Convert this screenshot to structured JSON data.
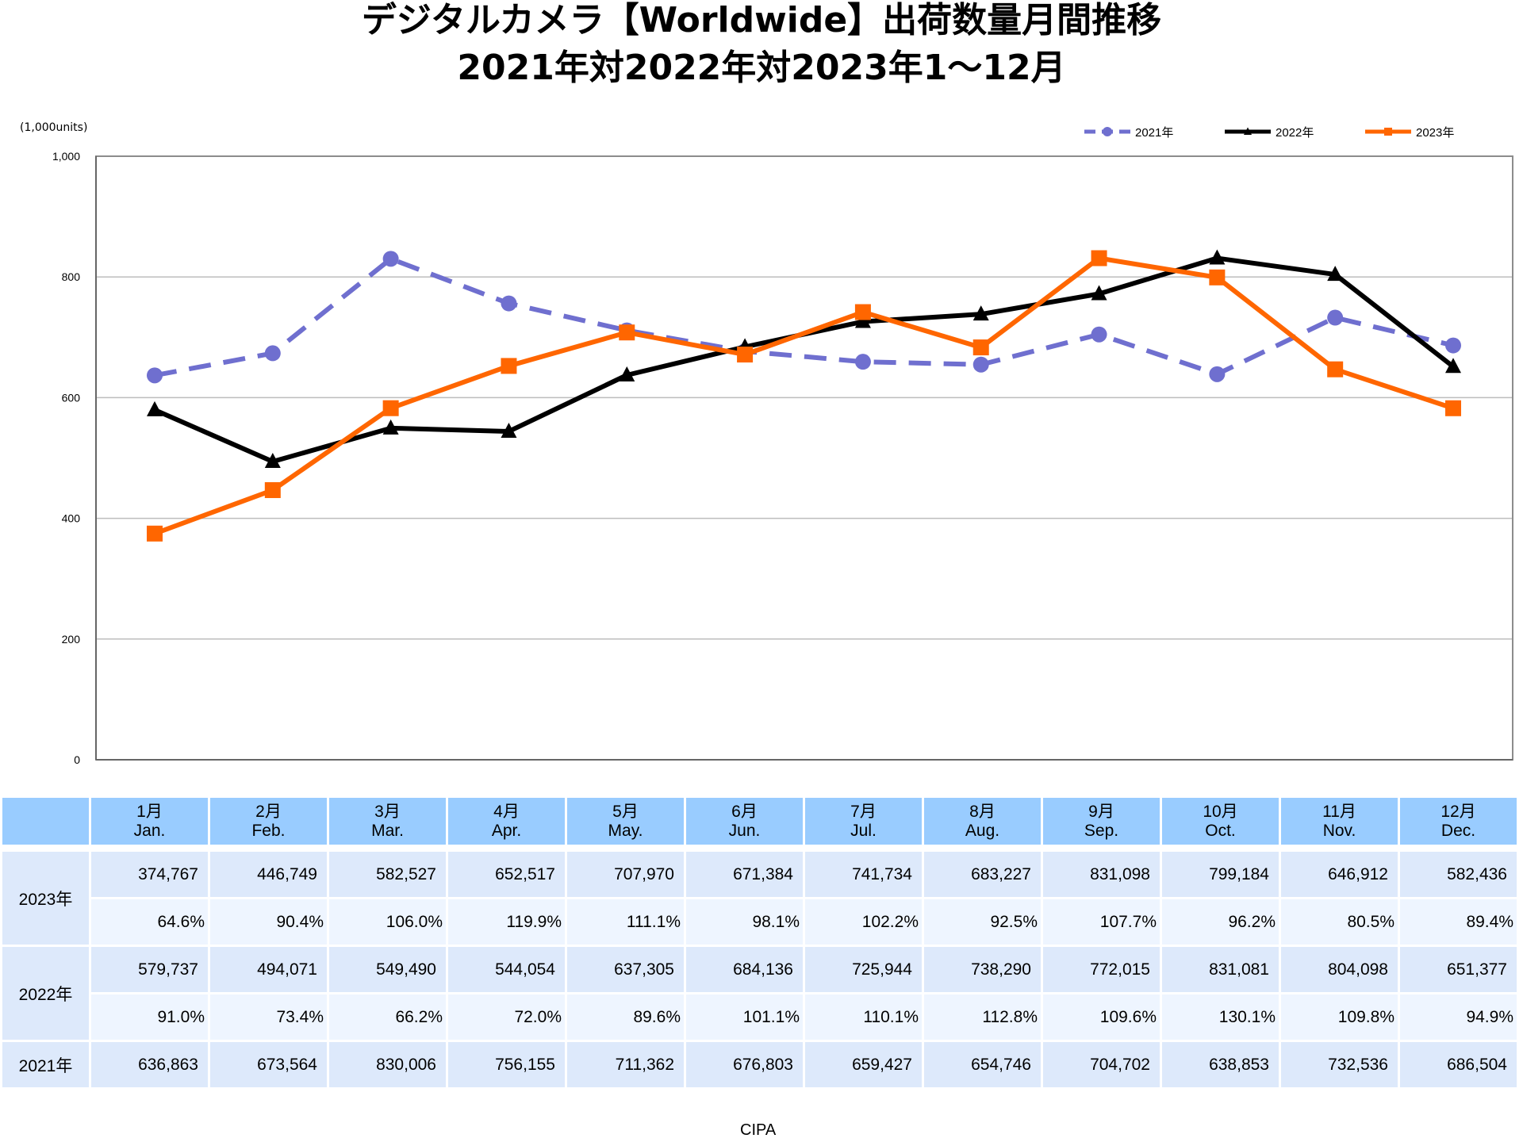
{
  "chart_data": {
    "type": "line",
    "title": [
      "デジタルカメラ【Worldwide】出荷数量月間推移",
      "2021年対2022年対2023年1～12月"
    ],
    "ylabel": "(1,000units)",
    "ylim": [
      0,
      1000
    ],
    "yticks": [
      "0",
      "200",
      "400",
      "600",
      "800",
      "1,000"
    ],
    "ytick_values": [
      0,
      200,
      400,
      600,
      800,
      1000
    ],
    "grid": true,
    "legend_position": "top-right",
    "categories": [
      "1月",
      "2月",
      "3月",
      "4月",
      "5月",
      "6月",
      "7月",
      "8月",
      "9月",
      "10月",
      "11月",
      "12月"
    ],
    "categories_en": [
      "Jan.",
      "Feb.",
      "Mar.",
      "Apr.",
      "May.",
      "Jun.",
      "Jul.",
      "Aug.",
      "Sep.",
      "Oct.",
      "Nov.",
      "Dec."
    ],
    "series": [
      {
        "name": "2021年",
        "color": "#6f6fcf",
        "style": "dashed",
        "marker": "circle",
        "values": [
          636.863,
          673.564,
          830.006,
          756.155,
          711.362,
          676.803,
          659.427,
          654.746,
          704.702,
          638.853,
          732.536,
          686.504
        ]
      },
      {
        "name": "2022年",
        "color": "#000000",
        "style": "solid",
        "marker": "triangle",
        "values": [
          579.737,
          494.071,
          549.49,
          544.054,
          637.305,
          684.136,
          725.944,
          738.29,
          772.015,
          831.081,
          804.098,
          651.377
        ]
      },
      {
        "name": "2023年",
        "color": "#ff6600",
        "style": "solid",
        "marker": "square",
        "values": [
          374.767,
          446.749,
          582.527,
          652.517,
          707.97,
          671.384,
          741.734,
          683.227,
          831.098,
          799.184,
          646.912,
          582.436
        ]
      }
    ]
  },
  "table": {
    "rows": [
      {
        "year": "2023年",
        "values": [
          "374,767",
          "446,749",
          "582,527",
          "652,517",
          "707,970",
          "671,384",
          "741,734",
          "683,227",
          "831,098",
          "799,184",
          "646,912",
          "582,436"
        ],
        "ratios": [
          "64.6%",
          "90.4%",
          "106.0%",
          "119.9%",
          "111.1%",
          "98.1%",
          "102.2%",
          "92.5%",
          "107.7%",
          "96.2%",
          "80.5%",
          "89.4%"
        ]
      },
      {
        "year": "2022年",
        "values": [
          "579,737",
          "494,071",
          "549,490",
          "544,054",
          "637,305",
          "684,136",
          "725,944",
          "738,290",
          "772,015",
          "831,081",
          "804,098",
          "651,377"
        ],
        "ratios": [
          "91.0%",
          "73.4%",
          "66.2%",
          "72.0%",
          "89.6%",
          "101.1%",
          "110.1%",
          "112.8%",
          "109.6%",
          "130.1%",
          "109.8%",
          "94.9%"
        ]
      },
      {
        "year": "2021年",
        "values": [
          "636,863",
          "673,564",
          "830,006",
          "756,155",
          "711,362",
          "676,803",
          "659,427",
          "654,746",
          "704,702",
          "638,853",
          "732,536",
          "686,504"
        ]
      }
    ]
  },
  "source": "CIPA"
}
